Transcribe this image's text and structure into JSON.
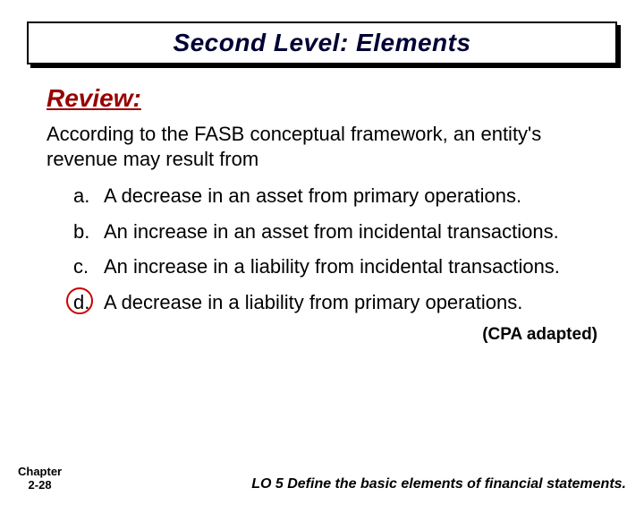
{
  "title": "Second Level: Elements",
  "review_label": "Review:",
  "question": "According to the FASB conceptual framework, an entity's revenue may result from",
  "options": [
    {
      "letter": "a.",
      "text": "A decrease in an asset from primary operations.",
      "circled": false
    },
    {
      "letter": "b.",
      "text": "An increase in an asset from incidental transactions.",
      "circled": false
    },
    {
      "letter": "c.",
      "text": "An increase in a liability from incidental transactions.",
      "circled": false
    },
    {
      "letter": "d.",
      "text": "A decrease in a liability from primary operations.",
      "circled": true
    }
  ],
  "source": "(CPA adapted)",
  "chapter_line1": "Chapter",
  "chapter_line2": "2-28",
  "learning_objective": "LO 5   Define the basic elements of financial statements.",
  "colors": {
    "title_text": "#000033",
    "review_text": "#990000",
    "circle": "#cc0000",
    "body_text": "#000000",
    "background": "#ffffff"
  }
}
